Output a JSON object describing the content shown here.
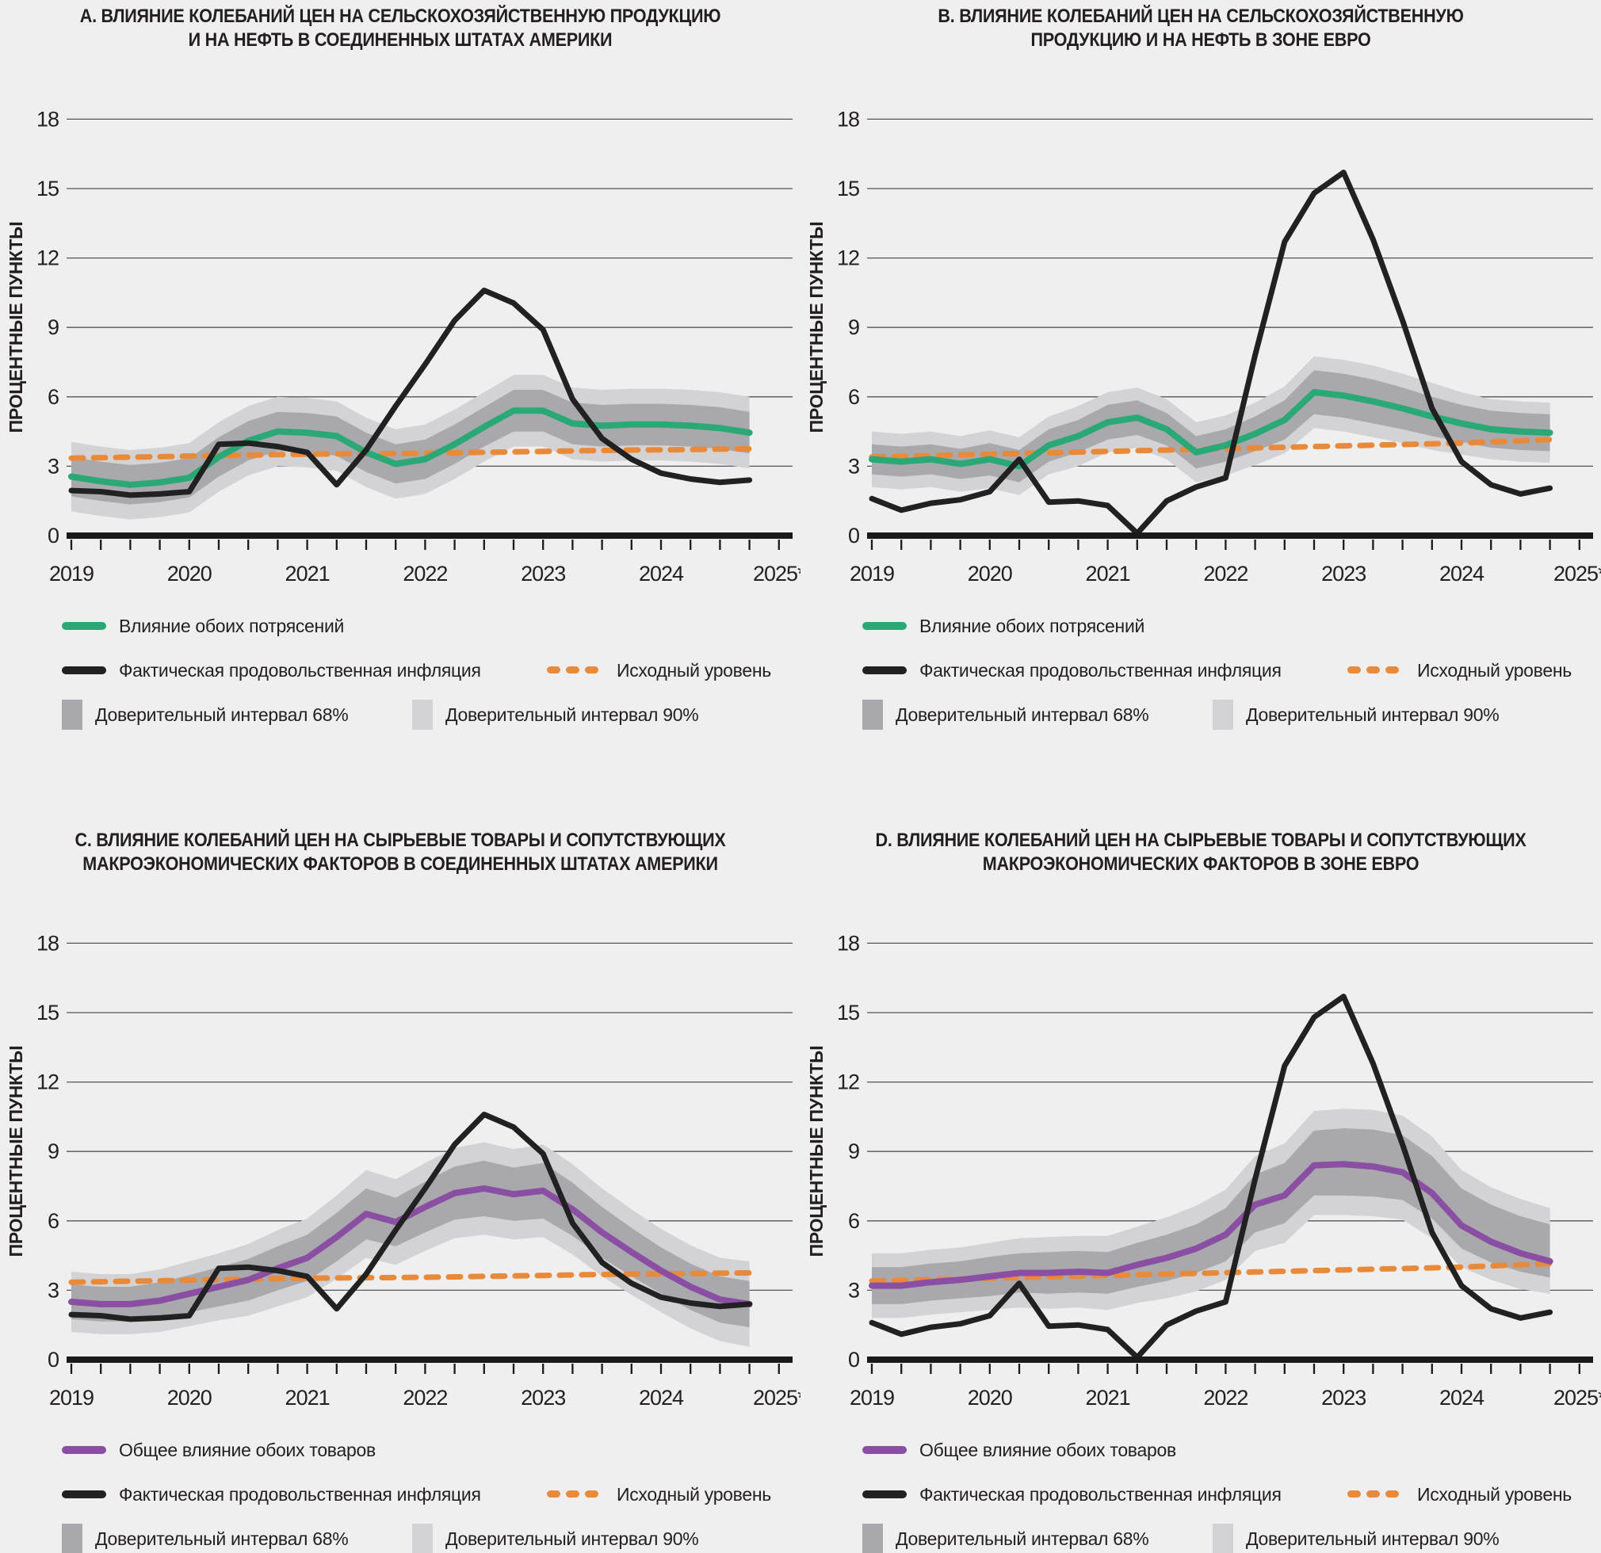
{
  "colors": {
    "background": "#f0efef",
    "text": "#231f20",
    "grid": "#55565a",
    "axis": "#1a1a1a",
    "green": "#2aa876",
    "purple": "#8a4fa3",
    "orange": "#e88a3a",
    "black_line": "#212121",
    "band68": "#a9a9ad",
    "band90": "#d3d3d6"
  },
  "chart_data": {
    "type": "line",
    "x": {
      "start_year": 2019,
      "points_per_year": 4,
      "n_points": 24,
      "tick_labels": [
        "2019",
        "2020",
        "2021",
        "2022",
        "2023",
        "2024",
        "2025*"
      ]
    },
    "y": {
      "label": "ПРОЦЕНТНЫЕ ПУНКТЫ",
      "ticks": [
        0,
        3,
        6,
        9,
        12,
        15,
        18
      ],
      "min": 0,
      "max": 18,
      "gridlines": [
        3,
        6,
        9,
        12,
        15,
        18
      ]
    },
    "legend": {
      "actual": "Фактическая продовольственная инфляция",
      "baseline": "Исходный уровень",
      "ci68": "Доверительный интервал 68%",
      "ci90": "Доверительный интервал 90%"
    },
    "panels": [
      {
        "letter": "A",
        "title1": "A. ВЛИЯНИЕ КОЛЕБАНИЙ ЦЕН НА СЕЛЬСКОХОЗЯЙСТВЕННУЮ ПРОДУКЦИЮ",
        "title2": "И НА НЕФТЬ В СОЕДИНЕННЫХ ШТАТАХ АМЕРИКИ",
        "impact_label": "Влияние обоих потрясений",
        "impact_color_key": "green",
        "impact": [
          2.55,
          2.35,
          2.2,
          2.3,
          2.5,
          3.4,
          4.1,
          4.5,
          4.45,
          4.3,
          3.6,
          3.1,
          3.3,
          3.95,
          4.7,
          5.4,
          5.4,
          4.85,
          4.75,
          4.8,
          4.8,
          4.75,
          4.65,
          4.45
        ],
        "actual": [
          1.95,
          1.9,
          1.75,
          1.8,
          1.9,
          3.95,
          4.0,
          3.85,
          3.6,
          2.2,
          3.7,
          5.6,
          7.4,
          9.3,
          10.6,
          10.05,
          8.9,
          5.9,
          4.2,
          3.3,
          2.7,
          2.45,
          2.3,
          2.4
        ],
        "baseline": [
          3.35,
          3.37,
          3.39,
          3.41,
          3.44,
          3.46,
          3.48,
          3.5,
          3.52,
          3.53,
          3.54,
          3.55,
          3.56,
          3.58,
          3.6,
          3.62,
          3.64,
          3.66,
          3.68,
          3.7,
          3.71,
          3.72,
          3.74,
          3.75
        ],
        "h68": [
          0.85,
          0.85,
          0.85,
          0.85,
          0.85,
          0.85,
          0.85,
          0.85,
          0.85,
          0.85,
          0.85,
          0.85,
          0.85,
          0.85,
          0.85,
          0.9,
          0.9,
          0.9,
          0.9,
          0.9,
          0.9,
          0.9,
          0.9,
          0.9
        ],
        "h90": [
          1.5,
          1.5,
          1.5,
          1.5,
          1.5,
          1.5,
          1.5,
          1.5,
          1.5,
          1.5,
          1.5,
          1.5,
          1.5,
          1.5,
          1.5,
          1.55,
          1.55,
          1.55,
          1.55,
          1.55,
          1.55,
          1.55,
          1.55,
          1.55
        ],
        "skew": [
          0,
          0,
          0,
          0,
          0,
          0,
          0,
          0,
          0,
          0,
          0,
          0,
          0,
          0,
          0,
          0,
          0,
          0,
          0,
          0,
          0,
          0,
          0,
          0
        ]
      },
      {
        "letter": "B",
        "title1": "B. ВЛИЯНИЕ КОЛЕБАНИЙ ЦЕН НА СЕЛЬСКОХОЗЯЙСТВЕННУЮ",
        "title2": "ПРОДУКЦИЮ И НА НЕФТЬ В ЗОНЕ ЕВРО",
        "impact_label": "Влияние обоих потрясений",
        "impact_color_key": "green",
        "impact": [
          3.3,
          3.2,
          3.3,
          3.1,
          3.3,
          3.0,
          3.9,
          4.3,
          4.9,
          5.1,
          4.6,
          3.6,
          3.9,
          4.4,
          5.0,
          6.2,
          6.05,
          5.8,
          5.5,
          5.15,
          4.85,
          4.6,
          4.5,
          4.45
        ],
        "actual": [
          1.6,
          1.1,
          1.4,
          1.55,
          1.9,
          3.3,
          1.45,
          1.5,
          1.3,
          0.1,
          1.5,
          2.1,
          2.5,
          7.8,
          12.7,
          14.8,
          15.7,
          12.8,
          9.3,
          5.5,
          3.2,
          2.2,
          1.8,
          2.05
        ],
        "baseline": [
          3.4,
          3.43,
          3.46,
          3.49,
          3.52,
          3.55,
          3.58,
          3.61,
          3.64,
          3.67,
          3.7,
          3.73,
          3.76,
          3.79,
          3.82,
          3.85,
          3.88,
          3.91,
          3.94,
          3.97,
          4.0,
          4.05,
          4.1,
          4.15
        ],
        "h68": [
          0.65,
          0.65,
          0.65,
          0.65,
          0.7,
          0.7,
          0.7,
          0.7,
          0.75,
          0.75,
          0.7,
          0.7,
          0.7,
          0.75,
          0.85,
          0.95,
          0.95,
          0.95,
          0.9,
          0.85,
          0.8,
          0.8,
          0.8,
          0.8
        ],
        "h90": [
          1.2,
          1.2,
          1.2,
          1.2,
          1.25,
          1.25,
          1.25,
          1.3,
          1.3,
          1.3,
          1.3,
          1.3,
          1.3,
          1.35,
          1.45,
          1.55,
          1.55,
          1.55,
          1.5,
          1.45,
          1.35,
          1.3,
          1.3,
          1.3
        ],
        "skew": [
          0,
          0,
          0,
          0,
          0,
          0,
          0,
          0,
          0,
          0,
          0,
          0,
          0,
          0,
          0,
          0,
          0,
          0,
          0,
          0,
          0,
          0,
          0,
          0
        ]
      },
      {
        "letter": "C",
        "title1": "C. ВЛИЯНИЕ КОЛЕБАНИЙ ЦЕН НА СЫРЬЕВЫЕ ТОВАРЫ И СОПУТСТВУЮЩИХ",
        "title2": "МАКРОЭКОНОМИЧЕСКИХ ФАКТОРОВ В СОЕДИНЕННЫХ ШТАТАХ АМЕРИКИ",
        "impact_label": "Общее влияние обоих товаров",
        "impact_color_key": "purple",
        "impact": [
          2.5,
          2.4,
          2.4,
          2.55,
          2.85,
          3.15,
          3.45,
          3.95,
          4.4,
          5.3,
          6.3,
          5.95,
          6.6,
          7.2,
          7.4,
          7.15,
          7.3,
          6.5,
          5.5,
          4.65,
          3.85,
          3.15,
          2.6,
          2.4
        ],
        "actual": [
          1.95,
          1.9,
          1.75,
          1.8,
          1.9,
          3.95,
          4.0,
          3.85,
          3.6,
          2.2,
          3.7,
          5.6,
          7.4,
          9.3,
          10.6,
          10.05,
          8.9,
          5.9,
          4.2,
          3.3,
          2.7,
          2.45,
          2.3,
          2.4
        ],
        "baseline": [
          3.35,
          3.37,
          3.39,
          3.41,
          3.44,
          3.46,
          3.48,
          3.5,
          3.52,
          3.53,
          3.54,
          3.55,
          3.56,
          3.58,
          3.6,
          3.62,
          3.64,
          3.66,
          3.68,
          3.7,
          3.71,
          3.72,
          3.74,
          3.75
        ],
        "h68": [
          0.75,
          0.75,
          0.75,
          0.8,
          0.8,
          0.85,
          0.9,
          0.95,
          1.0,
          1.05,
          1.1,
          1.05,
          1.1,
          1.15,
          1.2,
          1.15,
          1.2,
          1.15,
          1.1,
          1.05,
          1.0,
          1.0,
          1.0,
          1.0
        ],
        "h90": [
          1.3,
          1.3,
          1.3,
          1.35,
          1.4,
          1.45,
          1.55,
          1.65,
          1.7,
          1.8,
          1.9,
          1.85,
          1.9,
          1.95,
          2.0,
          1.95,
          2.0,
          1.95,
          1.9,
          1.85,
          1.8,
          1.8,
          1.8,
          1.85
        ],
        "skew": [
          0,
          0,
          0,
          0,
          0,
          0,
          0,
          0,
          0,
          0,
          0,
          0,
          0,
          0,
          0,
          0,
          0,
          0,
          0,
          0,
          0,
          0,
          0,
          0
        ]
      },
      {
        "letter": "D",
        "title1": "D. ВЛИЯНИЕ КОЛЕБАНИЙ ЦЕН НА СЫРЬЕВЫЕ ТОВАРЫ И СОПУТСТВУЮЩИХ",
        "title2": "МАКРОЭКОНОМИЧЕСКИХ ФАКТОРОВ В ЗОНЕ ЕВРО",
        "impact_label": "Общее влияние обоих товаров",
        "impact_color_key": "purple",
        "impact": [
          3.2,
          3.2,
          3.35,
          3.45,
          3.6,
          3.75,
          3.75,
          3.8,
          3.75,
          4.1,
          4.4,
          4.8,
          5.4,
          6.7,
          7.1,
          8.4,
          8.45,
          8.35,
          8.1,
          7.2,
          5.8,
          5.1,
          4.6,
          4.25
        ],
        "actual": [
          1.6,
          1.1,
          1.4,
          1.55,
          1.9,
          3.3,
          1.45,
          1.5,
          1.3,
          0.1,
          1.5,
          2.1,
          2.5,
          7.8,
          12.7,
          14.8,
          15.7,
          12.8,
          9.3,
          5.5,
          3.2,
          2.2,
          1.8,
          2.05
        ],
        "baseline": [
          3.4,
          3.43,
          3.46,
          3.49,
          3.52,
          3.55,
          3.58,
          3.61,
          3.64,
          3.67,
          3.7,
          3.73,
          3.76,
          3.79,
          3.82,
          3.85,
          3.88,
          3.91,
          3.94,
          3.97,
          4.0,
          4.05,
          4.1,
          4.15
        ],
        "h68": [
          0.8,
          0.8,
          0.8,
          0.8,
          0.85,
          0.85,
          0.9,
          0.9,
          0.9,
          0.95,
          1.0,
          1.05,
          1.15,
          1.25,
          1.3,
          1.4,
          1.45,
          1.45,
          1.4,
          1.35,
          1.3,
          1.25,
          1.2,
          1.15
        ],
        "h90": [
          1.4,
          1.4,
          1.4,
          1.4,
          1.45,
          1.5,
          1.55,
          1.55,
          1.6,
          1.65,
          1.75,
          1.85,
          1.95,
          2.05,
          2.15,
          2.25,
          2.3,
          2.3,
          2.25,
          2.2,
          2.1,
          2.0,
          1.95,
          1.85
        ],
        "skew": [
          0,
          0,
          0,
          0,
          0,
          0,
          0,
          0,
          0,
          0,
          0,
          0,
          0,
          0.05,
          0.1,
          0.1,
          0.1,
          0.15,
          0.2,
          0.25,
          0.3,
          0.35,
          0.4,
          0.45
        ]
      }
    ]
  }
}
